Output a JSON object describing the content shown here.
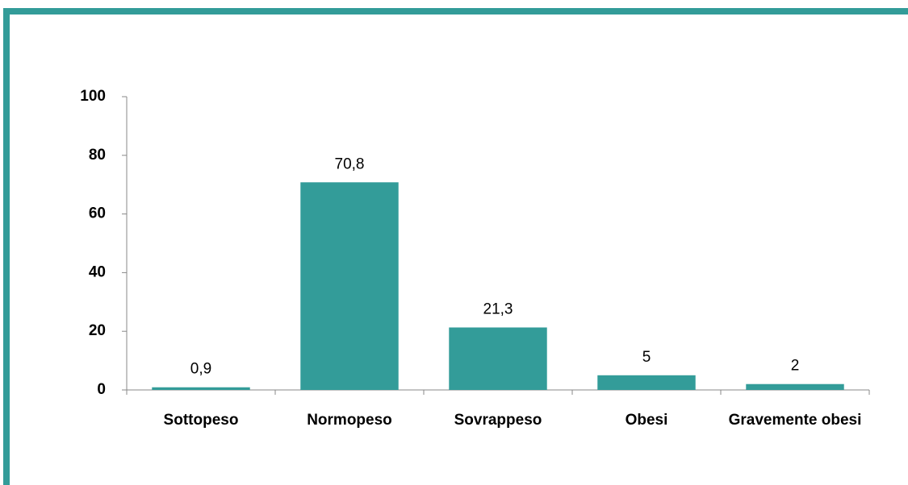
{
  "chart_data": {
    "type": "bar",
    "categories": [
      "Sottopeso",
      "Normopeso",
      "Sovrappeso",
      "Obesi",
      "Gravemente obesi"
    ],
    "values": [
      0.9,
      70.8,
      21.3,
      5,
      2
    ],
    "value_labels": [
      "0,9",
      "70,8",
      "21,3",
      "5",
      "2"
    ],
    "color": "#339c99",
    "ylim": [
      0,
      100
    ],
    "yticks": [
      0,
      20,
      40,
      60,
      80,
      100
    ],
    "grid": false
  }
}
